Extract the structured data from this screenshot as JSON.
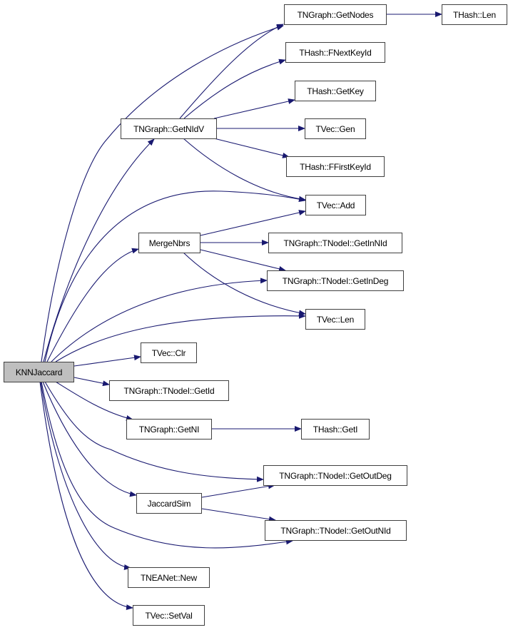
{
  "diagram": {
    "type": "call-graph",
    "colors": {
      "edge": "#191970",
      "root_fill": "#bfbfbf",
      "node_border": "#404040"
    },
    "nodes": {
      "knnjaccard": "KNNJaccard",
      "getnidv": "TNGraph::GetNIdV",
      "getnodes": "TNGraph::GetNodes",
      "hashlen": "THash::Len",
      "fnextkeyid": "THash::FNextKeyId",
      "getkey": "THash::GetKey",
      "gen": "TVec::Gen",
      "ffirstkeyid": "THash::FFirstKeyId",
      "add": "TVec::Add",
      "mergenbrs": "MergeNbrs",
      "getinnid": "TNGraph::TNodeI::GetInNId",
      "getindeg": "TNGraph::TNodeI::GetInDeg",
      "veclen": "TVec::Len",
      "clr": "TVec::Clr",
      "getid": "TNGraph::TNodeI::GetId",
      "getni": "TNGraph::GetNI",
      "geti": "THash::GetI",
      "getoutdeg": "TNGraph::TNodeI::GetOutDeg",
      "jaccardsim": "JaccardSim",
      "getoutnid": "TNGraph::TNodeI::GetOutNId",
      "new": "TNEANet::New",
      "setval": "TVec::SetVal"
    },
    "edges": [
      [
        "knnjaccard",
        "getnodes"
      ],
      [
        "knnjaccard",
        "getnidv"
      ],
      [
        "knnjaccard",
        "add"
      ],
      [
        "knnjaccard",
        "mergenbrs"
      ],
      [
        "knnjaccard",
        "getindeg"
      ],
      [
        "knnjaccard",
        "veclen"
      ],
      [
        "knnjaccard",
        "clr"
      ],
      [
        "knnjaccard",
        "getid"
      ],
      [
        "knnjaccard",
        "getni"
      ],
      [
        "knnjaccard",
        "getoutdeg"
      ],
      [
        "knnjaccard",
        "jaccardsim"
      ],
      [
        "knnjaccard",
        "getoutnid"
      ],
      [
        "knnjaccard",
        "new"
      ],
      [
        "knnjaccard",
        "setval"
      ],
      [
        "getnidv",
        "getnodes"
      ],
      [
        "getnidv",
        "fnextkeyid"
      ],
      [
        "getnidv",
        "getkey"
      ],
      [
        "getnidv",
        "gen"
      ],
      [
        "getnidv",
        "ffirstkeyid"
      ],
      [
        "getnidv",
        "add"
      ],
      [
        "getnodes",
        "hashlen"
      ],
      [
        "mergenbrs",
        "add"
      ],
      [
        "mergenbrs",
        "getinnid"
      ],
      [
        "mergenbrs",
        "getindeg"
      ],
      [
        "mergenbrs",
        "veclen"
      ],
      [
        "getni",
        "geti"
      ],
      [
        "jaccardsim",
        "getoutdeg"
      ],
      [
        "jaccardsim",
        "getoutnid"
      ]
    ]
  }
}
